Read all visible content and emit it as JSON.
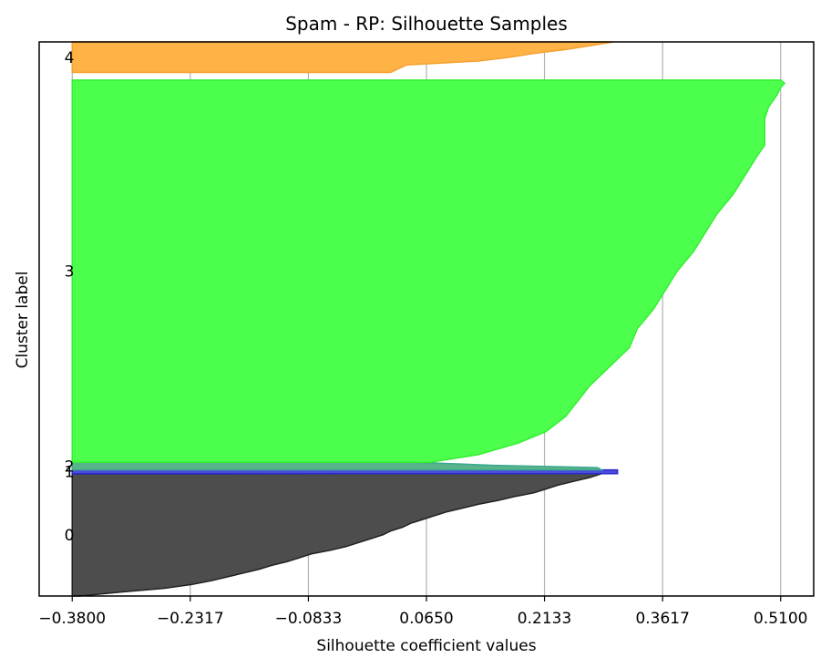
{
  "chart_data": {
    "type": "area",
    "title": "Spam - RP: Silhouette Samples",
    "xlabel": "Silhouette coefficient values",
    "ylabel": "Cluster label",
    "xlim": [
      -0.38,
      0.51
    ],
    "xticks": [
      -0.38,
      -0.2317,
      -0.0833,
      0.065,
      0.2133,
      0.3617,
      0.51
    ],
    "xtick_labels": [
      "−0.3800",
      "−0.2317",
      "−0.0833",
      "0.0650",
      "0.2133",
      "0.3617",
      "0.5100"
    ],
    "grid": "vertical",
    "clusters": [
      {
        "label": "0",
        "color": "#4d4d4d",
        "edge": "#222222",
        "span": [
          0,
          160
        ],
        "profile": [
          [
            0,
            -0.37
          ],
          [
            5,
            -0.32
          ],
          [
            10,
            -0.265
          ],
          [
            15,
            -0.23
          ],
          [
            20,
            -0.205
          ],
          [
            25,
            -0.185
          ],
          [
            30,
            -0.165
          ],
          [
            35,
            -0.145
          ],
          [
            40,
            -0.13
          ],
          [
            45,
            -0.11
          ],
          [
            50,
            -0.095
          ],
          [
            55,
            -0.08
          ],
          [
            60,
            -0.055
          ],
          [
            65,
            -0.035
          ],
          [
            70,
            -0.02
          ],
          [
            75,
            -0.005
          ],
          [
            80,
            0.01
          ],
          [
            85,
            0.02
          ],
          [
            90,
            0.035
          ],
          [
            95,
            0.045
          ],
          [
            100,
            0.06
          ],
          [
            105,
            0.075
          ],
          [
            110,
            0.09
          ],
          [
            115,
            0.11
          ],
          [
            120,
            0.13
          ],
          [
            125,
            0.155
          ],
          [
            130,
            0.175
          ],
          [
            135,
            0.2
          ],
          [
            140,
            0.215
          ],
          [
            145,
            0.23
          ],
          [
            150,
            0.25
          ],
          [
            155,
            0.27
          ],
          [
            160,
            0.285
          ]
        ]
      },
      {
        "label": "1",
        "color": "#4b4bde",
        "edge": "#2b2bc8",
        "span": [
          160,
          165
        ],
        "profile": [
          [
            0,
            0.305
          ],
          [
            5,
            0.305
          ]
        ]
      },
      {
        "label": "2",
        "color": "#58b48a",
        "edge": "#3aa890",
        "span": [
          165,
          175
        ],
        "profile": [
          [
            0,
            0.285
          ],
          [
            3,
            0.28
          ],
          [
            6,
            0.15
          ],
          [
            10,
            0.05
          ]
        ]
      },
      {
        "label": "3",
        "color": "#4cff4c",
        "edge": "#33ee33",
        "span": [
          175,
          675
        ],
        "profile": [
          [
            0,
            0.07
          ],
          [
            10,
            0.13
          ],
          [
            25,
            0.18
          ],
          [
            40,
            0.215
          ],
          [
            60,
            0.24
          ],
          [
            80,
            0.255
          ],
          [
            100,
            0.27
          ],
          [
            120,
            0.29
          ],
          [
            150,
            0.32
          ],
          [
            175,
            0.33
          ],
          [
            200,
            0.35
          ],
          [
            225,
            0.365
          ],
          [
            250,
            0.38
          ],
          [
            275,
            0.4
          ],
          [
            300,
            0.415
          ],
          [
            325,
            0.43
          ],
          [
            350,
            0.45
          ],
          [
            375,
            0.465
          ],
          [
            400,
            0.48
          ],
          [
            415,
            0.49
          ],
          [
            420,
            0.49
          ],
          [
            450,
            0.49
          ],
          [
            465,
            0.495
          ],
          [
            480,
            0.505
          ],
          [
            490,
            0.51
          ],
          [
            496,
            0.515
          ],
          [
            500,
            0.51
          ]
        ]
      },
      {
        "label": "4",
        "color": "#ffb347",
        "edge": "#f5a030",
        "span": [
          685,
          725
        ],
        "profile": [
          [
            0,
            0.02
          ],
          [
            10,
            0.04
          ],
          [
            15,
            0.13
          ],
          [
            20,
            0.17
          ],
          [
            25,
            0.2
          ],
          [
            30,
            0.24
          ],
          [
            35,
            0.27
          ],
          [
            40,
            0.3
          ]
        ]
      }
    ],
    "ylim": [
      0,
      725
    ]
  }
}
